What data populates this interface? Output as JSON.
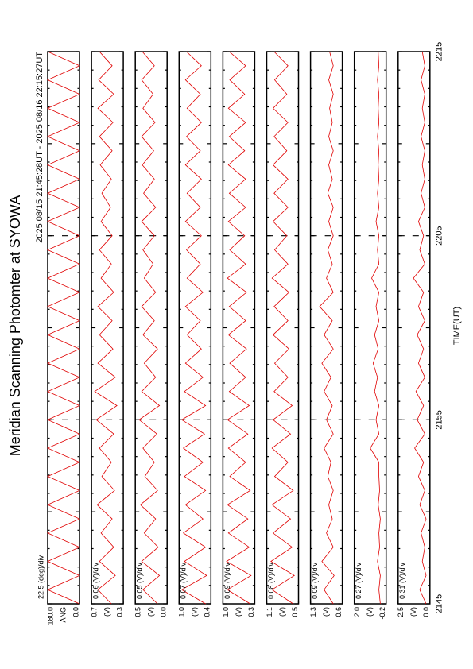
{
  "header": {
    "title": "Meridian Scanning Photomter at SYOWA",
    "subtitle": "2025 08/15 21:45:28UT - 2025 08/16 22:15:27UT"
  },
  "time_axis": {
    "label": "TIME(UT)",
    "ticks": [
      "2145",
      "2155",
      "2205",
      "2215"
    ]
  },
  "chart_data": [
    {
      "type": "line",
      "scale_label": "22.5 (deg)/div",
      "unit": "ANG",
      "color": "#e00000",
      "ylim": [
        0,
        180
      ],
      "yticks": [
        {
          "value": 0,
          "label": "0.0"
        },
        {
          "value": 180,
          "label": "180.0"
        }
      ],
      "values": [
        0,
        180,
        0,
        180,
        0,
        180,
        0,
        180,
        0,
        180,
        0,
        180,
        0,
        180,
        0,
        180,
        0,
        180,
        0,
        180,
        0,
        180,
        0,
        180,
        0,
        180,
        0,
        180,
        0,
        180,
        0,
        180,
        0,
        180,
        0,
        180,
        0,
        180,
        0,
        180
      ]
    },
    {
      "type": "line",
      "scale_label": "0.06 (V)/div",
      "unit": "(V)",
      "color": "#e00000",
      "ylim": [
        0.3,
        0.7
      ],
      "yticks": [
        0.3,
        0.7
      ],
      "values": [
        0.45,
        0.62,
        0.4,
        0.6,
        0.42,
        0.58,
        0.44,
        0.63,
        0.41,
        0.57,
        0.45,
        0.6,
        0.42,
        0.64,
        0.38,
        0.66,
        0.4,
        0.62,
        0.43,
        0.6,
        0.44,
        0.62,
        0.42,
        0.58,
        0.45,
        0.6,
        0.44,
        0.58,
        0.46,
        0.57,
        0.45,
        0.59,
        0.44,
        0.6,
        0.43,
        0.62,
        0.42,
        0.61,
        0.44,
        0.6
      ]
    },
    {
      "type": "line",
      "scale_label": "0.05 (V)/div",
      "unit": "(V)",
      "color": "#e00000",
      "ylim": [
        0,
        0.5
      ],
      "yticks": [
        {
          "value": 0,
          "label": "0.0"
        },
        0.5
      ],
      "values": [
        0.15,
        0.38,
        0.12,
        0.4,
        0.14,
        0.36,
        0.18,
        0.42,
        0.15,
        0.35,
        0.2,
        0.38,
        0.16,
        0.44,
        0.12,
        0.4,
        0.18,
        0.36,
        0.15,
        0.38,
        0.2,
        0.4,
        0.18,
        0.36,
        0.22,
        0.38,
        0.2,
        0.4,
        0.18,
        0.37,
        0.2,
        0.39,
        0.21,
        0.4,
        0.19,
        0.38,
        0.22,
        0.4,
        0.2,
        0.39
      ]
    },
    {
      "type": "line",
      "scale_label": "0.07 (V)/div",
      "unit": "(V)",
      "color": "#e00000",
      "ylim": [
        0.4,
        1.0
      ],
      "yticks": [
        0.4,
        {
          "value": 1,
          "label": "1.0"
        }
      ],
      "values": [
        0.5,
        0.95,
        0.48,
        0.9,
        0.5,
        0.92,
        0.55,
        0.88,
        0.5,
        0.9,
        0.55,
        0.92,
        0.52,
        0.95,
        0.5,
        0.9,
        0.55,
        0.88,
        0.58,
        0.85,
        0.6,
        0.88,
        0.55,
        0.85,
        0.6,
        0.86,
        0.58,
        0.88,
        0.6,
        0.85,
        0.58,
        0.88,
        0.6,
        0.86,
        0.58,
        0.85,
        0.6,
        0.88,
        0.58,
        0.86
      ]
    },
    {
      "type": "line",
      "scale_label": "0.09 (V)/div",
      "unit": "(V)",
      "color": "#e00000",
      "ylim": [
        0.3,
        1.0
      ],
      "yticks": [
        0.3,
        {
          "value": 1,
          "label": "1.0"
        }
      ],
      "values": [
        0.4,
        0.9,
        0.38,
        0.92,
        0.42,
        0.88,
        0.45,
        0.9,
        0.4,
        0.85,
        0.5,
        0.88,
        0.45,
        0.9,
        0.42,
        0.86,
        0.5,
        0.85,
        0.48,
        0.88,
        0.5,
        0.86,
        0.48,
        0.9,
        0.5,
        0.85,
        0.52,
        0.88,
        0.5,
        0.86,
        0.5,
        0.88,
        0.52,
        0.86,
        0.5,
        0.88,
        0.52,
        0.85,
        0.5,
        0.86
      ]
    },
    {
      "type": "line",
      "scale_label": "0.08 (V)/div",
      "unit": "(V)",
      "color": "#e00000",
      "ylim": [
        0.5,
        1.1
      ],
      "yticks": [
        0.5,
        1.1
      ],
      "values": [
        0.6,
        1.0,
        0.58,
        1.02,
        0.62,
        0.98,
        0.65,
        1.0,
        0.6,
        0.95,
        0.7,
        1.0,
        0.65,
        0.98,
        0.62,
        0.96,
        0.7,
        0.95,
        0.68,
        0.98,
        0.7,
        0.96,
        0.68,
        1.0,
        0.7,
        0.95,
        0.72,
        0.98,
        0.7,
        0.96,
        0.7,
        0.98,
        0.72,
        0.96,
        0.7,
        0.98,
        0.72,
        0.95,
        0.7,
        0.96
      ]
    },
    {
      "type": "line",
      "scale_label": "0.09 (V)/div",
      "unit": "(V)",
      "color": "#e00000",
      "ylim": [
        0.6,
        1.3
      ],
      "yticks": [
        0.6,
        1.3
      ],
      "values": [
        0.8,
        1.0,
        0.78,
        1.05,
        0.8,
        0.95,
        0.82,
        0.9,
        0.8,
        0.92,
        0.85,
        1.0,
        0.8,
        0.95,
        0.82,
        1.0,
        0.85,
        1.05,
        0.8,
        1.0,
        0.82,
        1.1,
        0.8,
        0.95,
        0.82,
        0.92,
        0.8,
        0.9,
        0.8,
        0.92,
        0.82,
        0.9,
        0.8,
        0.9,
        0.82,
        0.88,
        0.8,
        0.9,
        0.8,
        0.88
      ]
    },
    {
      "type": "line",
      "scale_label": "0.27 (V)/div",
      "unit": "(V)",
      "color": "#e00000",
      "ylim": [
        -0.2,
        2.0
      ],
      "yticks": [
        -0.2,
        {
          "value": 2,
          "label": "2.0"
        }
      ],
      "values": [
        0.2,
        0.3,
        0.2,
        0.4,
        0.25,
        0.3,
        0.2,
        0.35,
        0.25,
        0.3,
        0.3,
        0.9,
        0.3,
        0.5,
        0.3,
        0.6,
        0.4,
        0.7,
        0.35,
        0.6,
        0.3,
        0.5,
        0.3,
        0.8,
        0.3,
        0.4,
        0.3,
        0.5,
        0.3,
        0.4,
        0.3,
        0.35,
        0.3,
        0.4,
        0.3,
        0.35,
        0.3,
        0.4,
        0.3,
        0.35
      ]
    },
    {
      "type": "line",
      "scale_label": "0.31 (V)/div",
      "unit": "(V)",
      "color": "#e00000",
      "ylim": [
        0,
        2.5
      ],
      "yticks": [
        {
          "value": 0,
          "label": "0.0"
        },
        2.5
      ],
      "values": [
        0.3,
        0.8,
        0.3,
        0.6,
        0.4,
        0.7,
        0.3,
        0.8,
        0.4,
        0.9,
        0.5,
        1.2,
        0.4,
        1.0,
        0.5,
        1.1,
        0.4,
        0.9,
        0.5,
        1.0,
        0.4,
        0.9,
        0.5,
        1.3,
        0.4,
        0.8,
        0.5,
        0.9,
        0.4,
        0.7,
        0.4,
        0.6,
        0.4,
        0.7,
        0.4,
        0.6,
        0.4,
        0.7,
        0.4,
        0.6
      ]
    }
  ]
}
